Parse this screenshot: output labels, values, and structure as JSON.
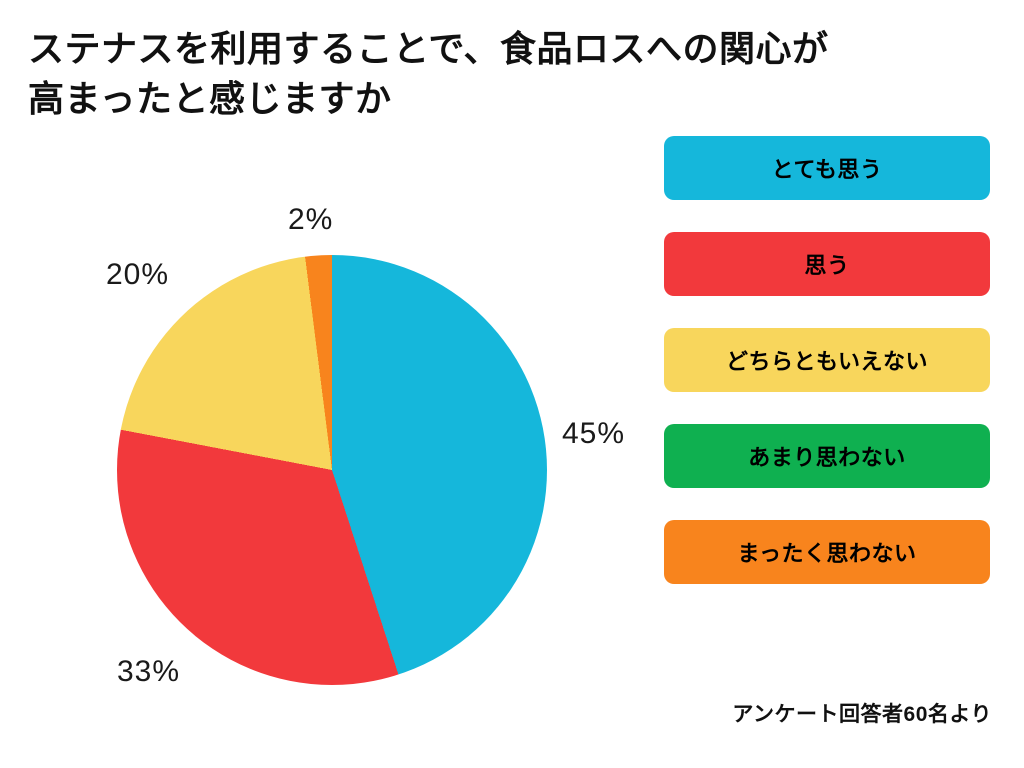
{
  "header": {
    "title_line1": "ステナスを利用することで、食品ロスへの関心が",
    "title_line2": "高まったと感じますか"
  },
  "chart_data": {
    "type": "pie",
    "title": "ステナスを利用することで、食品ロスへの関心が高まったと感じますか",
    "source": "アンケート回答者60名より",
    "unit": "%",
    "start_angle": "top",
    "direction": "clockwise",
    "legend_position": "right",
    "slices": [
      {
        "label": "とても思う",
        "value": 45,
        "pct_label": "45%",
        "color": "#15b7db"
      },
      {
        "label": "思う",
        "value": 33,
        "pct_label": "33%",
        "color": "#f2393c"
      },
      {
        "label": "どちらともいえない",
        "value": 20,
        "pct_label": "20%",
        "color": "#f8d65c"
      },
      {
        "label": "あまり思わない",
        "value": 0,
        "pct_label": "",
        "color": "#0fb050"
      },
      {
        "label": "まったく思わない",
        "value": 2,
        "pct_label": "2%",
        "color": "#f8841d"
      }
    ]
  }
}
